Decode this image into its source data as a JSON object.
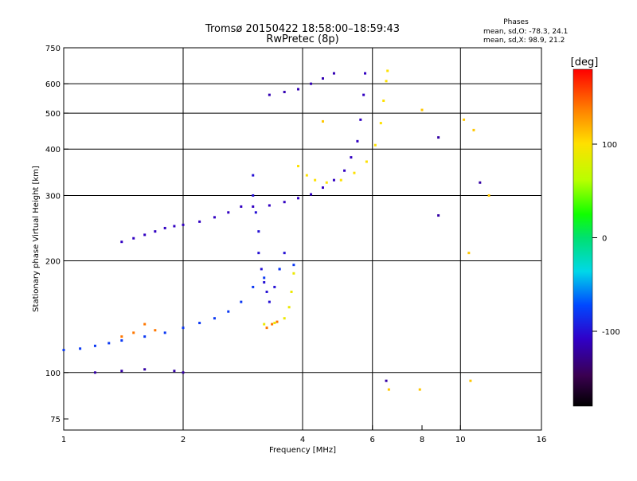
{
  "chart_data": {
    "type": "scatter",
    "title": "Tromsø 20150422 18:58:00–18:59:43",
    "subtitle": "RwPretec (8p)",
    "xlabel": "Frequency [MHz]",
    "ylabel": "Stationary phase Virtual Height [km]",
    "x_scale": "log",
    "y_scale": "log",
    "xlim": [
      1,
      16
    ],
    "ylim": [
      70,
      750
    ],
    "x_ticks": [
      1,
      2,
      4,
      6,
      8,
      10,
      16
    ],
    "y_ticks": [
      75,
      100,
      200,
      300,
      400,
      500,
      600,
      750
    ],
    "x_grid": [
      2,
      4,
      6,
      10
    ],
    "y_grid": [
      100,
      200,
      300,
      400,
      500,
      600
    ],
    "grid": true,
    "phase_stats": {
      "title": "Phases",
      "o_line": "mean, sd,O:  -78.3, 24.1",
      "x_line": "mean, sd,X:   98.9, 21.2"
    },
    "colorbar": {
      "label": "[deg]",
      "min": -180,
      "max": 180,
      "ticks": [
        100,
        0,
        -100
      ]
    },
    "traces": [
      {
        "phase": -110,
        "points": [
          [
            1.4,
            225
          ],
          [
            1.5,
            230
          ],
          [
            1.6,
            235
          ],
          [
            1.7,
            240
          ],
          [
            1.8,
            245
          ],
          [
            1.9,
            248
          ],
          [
            2.0,
            250
          ],
          [
            2.2,
            255
          ],
          [
            2.4,
            262
          ],
          [
            2.6,
            270
          ],
          [
            2.8,
            280
          ]
        ]
      },
      {
        "phase": -100,
        "points": [
          [
            3.0,
            340
          ],
          [
            3.0,
            300
          ],
          [
            3.05,
            270
          ],
          [
            3.1,
            240
          ],
          [
            3.1,
            210
          ],
          [
            3.15,
            190
          ],
          [
            3.2,
            175
          ],
          [
            3.25,
            165
          ],
          [
            3.3,
            155
          ],
          [
            3.4,
            170
          ],
          [
            3.5,
            190
          ],
          [
            3.6,
            210
          ]
        ]
      },
      {
        "phase": -110,
        "points": [
          [
            3.0,
            280
          ],
          [
            3.3,
            282
          ],
          [
            3.6,
            288
          ],
          [
            3.9,
            295
          ],
          [
            4.2,
            302
          ],
          [
            4.5,
            315
          ],
          [
            4.8,
            330
          ],
          [
            5.1,
            350
          ],
          [
            5.3,
            380
          ],
          [
            5.5,
            420
          ],
          [
            5.6,
            480
          ],
          [
            5.7,
            560
          ],
          [
            5.75,
            640
          ]
        ]
      },
      {
        "phase": -115,
        "points": [
          [
            3.3,
            560
          ],
          [
            3.6,
            570
          ],
          [
            3.9,
            580
          ],
          [
            4.2,
            600
          ],
          [
            4.5,
            620
          ],
          [
            4.8,
            640
          ]
        ]
      },
      {
        "phase": 100,
        "points": [
          [
            3.9,
            360
          ],
          [
            4.1,
            340
          ],
          [
            4.3,
            330
          ],
          [
            4.6,
            325
          ],
          [
            5.0,
            330
          ],
          [
            5.4,
            345
          ],
          [
            5.8,
            370
          ],
          [
            6.1,
            410
          ],
          [
            6.3,
            470
          ],
          [
            6.4,
            540
          ],
          [
            6.5,
            610
          ],
          [
            6.55,
            650
          ]
        ]
      },
      {
        "phase": -80,
        "points": [
          [
            1.0,
            115
          ],
          [
            1.1,
            116
          ],
          [
            1.2,
            118
          ],
          [
            1.3,
            120
          ],
          [
            1.4,
            122
          ],
          [
            1.6,
            125
          ],
          [
            1.8,
            128
          ],
          [
            2.0,
            132
          ],
          [
            2.2,
            136
          ],
          [
            2.4,
            140
          ],
          [
            2.6,
            146
          ],
          [
            2.8,
            155
          ],
          [
            3.0,
            170
          ],
          [
            3.2,
            180
          ],
          [
            3.5,
            190
          ],
          [
            3.8,
            195
          ]
        ]
      },
      {
        "phase": 90,
        "points": [
          [
            3.2,
            135
          ],
          [
            3.4,
            136
          ],
          [
            3.6,
            140
          ],
          [
            3.7,
            150
          ],
          [
            3.75,
            165
          ],
          [
            3.8,
            185
          ]
        ]
      },
      {
        "phase": 140,
        "points": [
          [
            1.4,
            125
          ],
          [
            1.5,
            128
          ],
          [
            1.6,
            135
          ],
          [
            1.7,
            130
          ],
          [
            3.25,
            132
          ],
          [
            3.35,
            135
          ],
          [
            3.45,
            137
          ]
        ]
      },
      {
        "phase": -120,
        "points": [
          [
            1.2,
            100
          ],
          [
            1.4,
            101
          ],
          [
            1.6,
            102
          ],
          [
            1.9,
            101
          ],
          [
            2.0,
            100
          ],
          [
            6.5,
            95
          ],
          [
            8.8,
            265
          ],
          [
            8.8,
            430
          ],
          [
            11.2,
            325
          ]
        ]
      },
      {
        "phase": 110,
        "points": [
          [
            8.0,
            510
          ],
          [
            10.2,
            480
          ],
          [
            10.8,
            450
          ],
          [
            11.8,
            300
          ],
          [
            10.5,
            210
          ],
          [
            10.6,
            95
          ],
          [
            7.9,
            90
          ],
          [
            6.6,
            90
          ],
          [
            4.5,
            475
          ]
        ]
      }
    ]
  }
}
